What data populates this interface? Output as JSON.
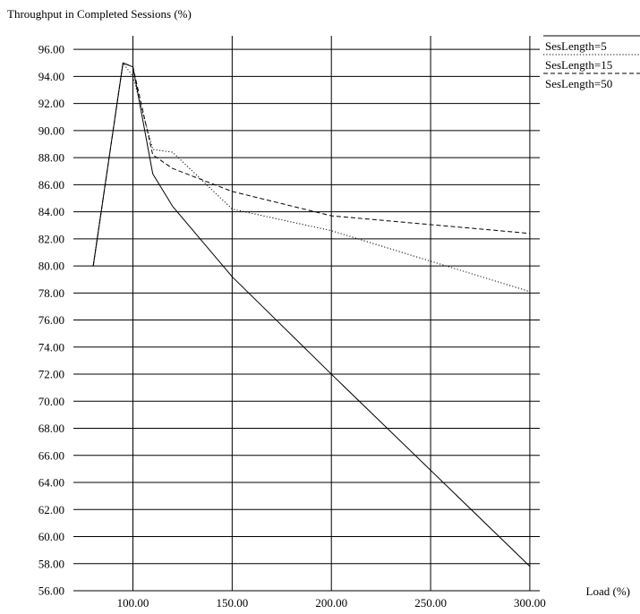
{
  "chart_data": {
    "type": "line",
    "title": "",
    "ylabel": "Throughput in Completed Sessions (%)",
    "xlabel": "Load (%)",
    "xlim": [
      70,
      305
    ],
    "ylim": [
      56,
      97
    ],
    "x_ticks": [
      100,
      150,
      200,
      250,
      300
    ],
    "x_tick_labels": [
      "100.00",
      "150.00",
      "200.00",
      "250.00",
      "300.00"
    ],
    "y_ticks": [
      56,
      58,
      60,
      62,
      64,
      66,
      68,
      70,
      72,
      74,
      76,
      78,
      80,
      82,
      84,
      86,
      88,
      90,
      92,
      94,
      96
    ],
    "y_tick_labels": [
      "56.00",
      "58.00",
      "60.00",
      "62.00",
      "64.00",
      "66.00",
      "68.00",
      "70.00",
      "72.00",
      "74.00",
      "76.00",
      "78.00",
      "80.00",
      "82.00",
      "84.00",
      "86.00",
      "88.00",
      "90.00",
      "92.00",
      "94.00",
      "96.00"
    ],
    "grid": true,
    "legend_position": "top-right",
    "series": [
      {
        "name": "SesLength=5",
        "style": "solid",
        "x": [
          80,
          95,
          100,
          110,
          120,
          150,
          200,
          300
        ],
        "y": [
          80.0,
          95.0,
          94.7,
          86.8,
          84.4,
          79.2,
          72.0,
          57.8
        ]
      },
      {
        "name": "SesLength=15",
        "style": "dotted",
        "x": [
          80,
          95,
          100,
          110,
          120,
          150,
          200,
          300
        ],
        "y": [
          80.0,
          95.0,
          94.0,
          88.6,
          88.4,
          84.2,
          82.6,
          78.1
        ]
      },
      {
        "name": "SesLength=50",
        "style": "dashed",
        "x": [
          80,
          95,
          100,
          110,
          120,
          150,
          200,
          300
        ],
        "y": [
          80.0,
          95.0,
          94.7,
          88.2,
          87.2,
          85.5,
          83.7,
          82.4
        ]
      }
    ]
  }
}
